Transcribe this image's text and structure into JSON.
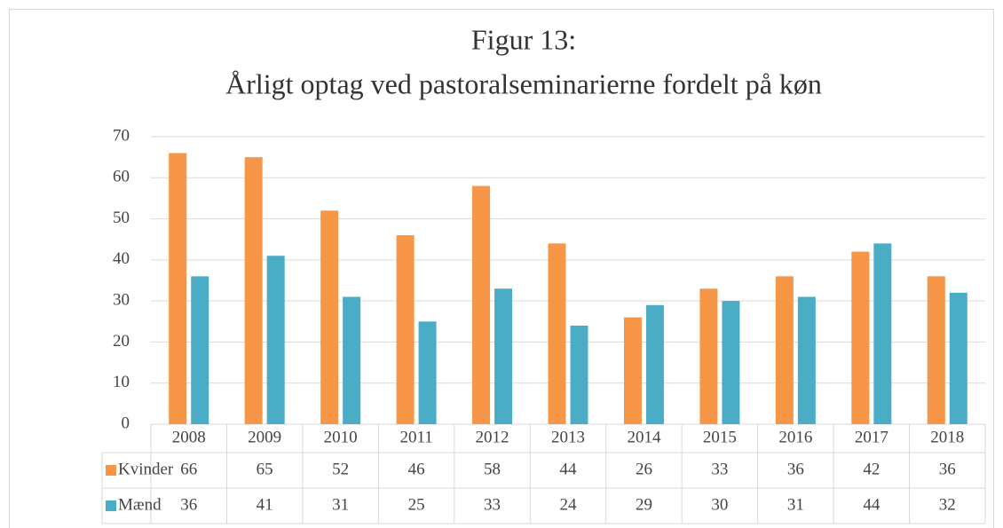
{
  "chart_data": {
    "type": "bar",
    "title": [
      "Figur 13:",
      "Årligt optag ved pastoralseminarierne fordelt på køn"
    ],
    "categories": [
      "2008",
      "2009",
      "2010",
      "2011",
      "2012",
      "2013",
      "2014",
      "2015",
      "2016",
      "2017",
      "2018"
    ],
    "series": [
      {
        "name": "Kvinder",
        "color": "#f79646",
        "values": [
          66,
          65,
          52,
          46,
          58,
          44,
          26,
          33,
          36,
          42,
          36
        ]
      },
      {
        "name": "Mænd",
        "color": "#4bacc6",
        "values": [
          36,
          41,
          31,
          25,
          33,
          24,
          29,
          30,
          31,
          44,
          32
        ]
      }
    ],
    "ylim": [
      0,
      70
    ],
    "yticks": [
      0,
      10,
      20,
      30,
      40,
      50,
      60,
      70
    ],
    "grid": true,
    "legend": "table"
  }
}
